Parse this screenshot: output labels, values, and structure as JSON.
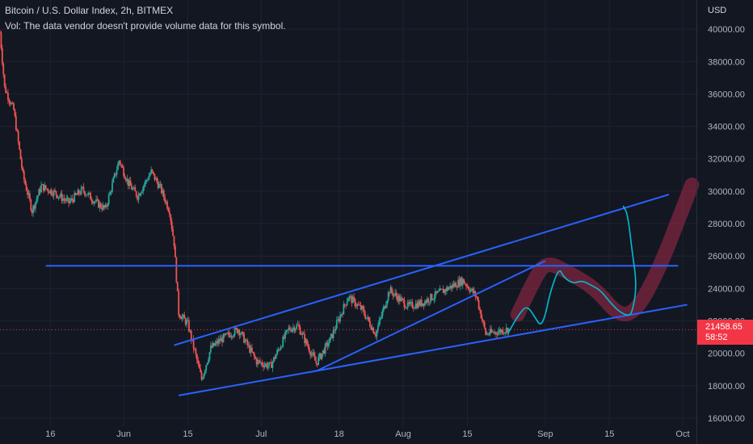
{
  "legend": {
    "title": "Bitcoin / U.S. Dollar Index, 2h, BITMEX",
    "vol": "Vol: The data vendor doesn't provide volume data for this symbol."
  },
  "price_scale": {
    "currency": "USD",
    "ticks": [
      "40000.00",
      "38000.00",
      "36000.00",
      "34000.00",
      "32000.00",
      "30000.00",
      "28000.00",
      "26000.00",
      "24000.00",
      "22000.00",
      "20000.00",
      "18000.00",
      "16000.00"
    ]
  },
  "last_price": {
    "value": "21458.65",
    "countdown": "58:52",
    "color": "#f23645"
  },
  "colors": {
    "background": "#131722",
    "grid": "#1f2330",
    "up": "#26a69a",
    "down": "#ef5350",
    "trendline": "#2962ff",
    "projection": "#00bcd4",
    "highlight": "#a52a4a"
  },
  "chart_data": {
    "type": "candlestick",
    "symbol": "Bitcoin / U.S. Dollar Index",
    "interval": "2h",
    "exchange": "BITMEX",
    "ylim": [
      15500,
      41800
    ],
    "y_ticks": [
      16000,
      18000,
      20000,
      22000,
      24000,
      26000,
      28000,
      30000,
      32000,
      34000,
      36000,
      38000,
      40000
    ],
    "x_ticks": [
      "16",
      "Jun",
      "15",
      "Jul",
      "18",
      "Aug",
      "15",
      "Sep",
      "15",
      "Oct"
    ],
    "x_tick_dates": [
      "2022-05-16",
      "2022-06-01",
      "2022-06-15",
      "2022-07-01",
      "2022-07-18",
      "2022-08-01",
      "2022-08-15",
      "2022-09-01",
      "2022-09-15",
      "2022-10-01"
    ],
    "x_range": [
      "2022-05-05",
      "2022-10-04"
    ],
    "price_path": [
      [
        "2022-05-05",
        39800
      ],
      [
        "2022-05-06",
        36400
      ],
      [
        "2022-05-08",
        35000
      ],
      [
        "2022-05-10",
        31000
      ],
      [
        "2022-05-12",
        28800
      ],
      [
        "2022-05-14",
        30300
      ],
      [
        "2022-05-17",
        29900
      ],
      [
        "2022-05-20",
        29300
      ],
      [
        "2022-05-23",
        30100
      ],
      [
        "2022-05-26",
        29300
      ],
      [
        "2022-05-28",
        28900
      ],
      [
        "2022-05-31",
        31900
      ],
      [
        "2022-06-02",
        30500
      ],
      [
        "2022-06-04",
        29700
      ],
      [
        "2022-06-07",
        31200
      ],
      [
        "2022-06-09",
        30200
      ],
      [
        "2022-06-11",
        28800
      ],
      [
        "2022-06-12",
        26800
      ],
      [
        "2022-06-13",
        22500
      ],
      [
        "2022-06-15",
        21800
      ],
      [
        "2022-06-18",
        18400
      ],
      [
        "2022-06-20",
        20300
      ],
      [
        "2022-06-22",
        20800
      ],
      [
        "2022-06-26",
        21500
      ],
      [
        "2022-06-30",
        19500
      ],
      [
        "2022-07-03",
        19200
      ],
      [
        "2022-07-07",
        21500
      ],
      [
        "2022-07-09",
        21700
      ],
      [
        "2022-07-13",
        19400
      ],
      [
        "2022-07-16",
        20800
      ],
      [
        "2022-07-20",
        23500
      ],
      [
        "2022-07-23",
        22700
      ],
      [
        "2022-07-26",
        21200
      ],
      [
        "2022-07-29",
        23900
      ],
      [
        "2022-08-02",
        22900
      ],
      [
        "2022-08-05",
        23100
      ],
      [
        "2022-08-10",
        23900
      ],
      [
        "2022-08-14",
        24500
      ],
      [
        "2022-08-17",
        23500
      ],
      [
        "2022-08-19",
        21200
      ],
      [
        "2022-08-21",
        21300
      ],
      [
        "2022-08-24",
        21500
      ]
    ],
    "annotations": {
      "horizontal_line": {
        "y": 25400,
        "x": [
          "2022-05-15",
          "2022-09-30"
        ]
      },
      "upper_channel_line": {
        "points": [
          [
            "2022-06-12",
            20500
          ],
          [
            "2022-09-28",
            29800
          ]
        ]
      },
      "lower_channel_line": {
        "points": [
          [
            "2022-06-13",
            17400
          ],
          [
            "2022-10-02",
            23000
          ]
        ]
      },
      "inner_rising_line": {
        "points": [
          [
            "2022-07-13",
            18900
          ],
          [
            "2022-09-01",
            25700
          ]
        ]
      },
      "projection_path": [
        [
          "2022-08-24",
          21300
        ],
        [
          "2022-08-26",
          22300
        ],
        [
          "2022-08-28",
          23000
        ],
        [
          "2022-08-30",
          22100
        ],
        [
          "2022-08-31",
          21700
        ],
        [
          "2022-09-01",
          22300
        ],
        [
          "2022-09-02",
          23700
        ],
        [
          "2022-09-04",
          25300
        ],
        [
          "2022-09-05",
          24700
        ],
        [
          "2022-09-07",
          24300
        ],
        [
          "2022-09-09",
          24500
        ],
        [
          "2022-09-11",
          24200
        ],
        [
          "2022-09-13",
          23900
        ],
        [
          "2022-09-15",
          23200
        ],
        [
          "2022-09-17",
          22600
        ],
        [
          "2022-09-19",
          22300
        ],
        [
          "2022-09-20",
          22500
        ],
        [
          "2022-09-21",
          24200
        ],
        [
          "2022-09-20",
          26200
        ],
        [
          "2022-09-19",
          28600
        ],
        [
          "2022-09-18",
          29100
        ]
      ],
      "highlight_stroke": [
        [
          "2022-08-26",
          22400
        ],
        [
          "2022-08-29",
          24200
        ],
        [
          "2022-09-01",
          25700
        ],
        [
          "2022-09-06",
          25000
        ],
        [
          "2022-09-12",
          24000
        ],
        [
          "2022-09-17",
          22300
        ],
        [
          "2022-09-21",
          22600
        ],
        [
          "2022-09-26",
          25300
        ],
        [
          "2022-09-30",
          28200
        ],
        [
          "2022-10-03",
          30400
        ]
      ]
    }
  }
}
